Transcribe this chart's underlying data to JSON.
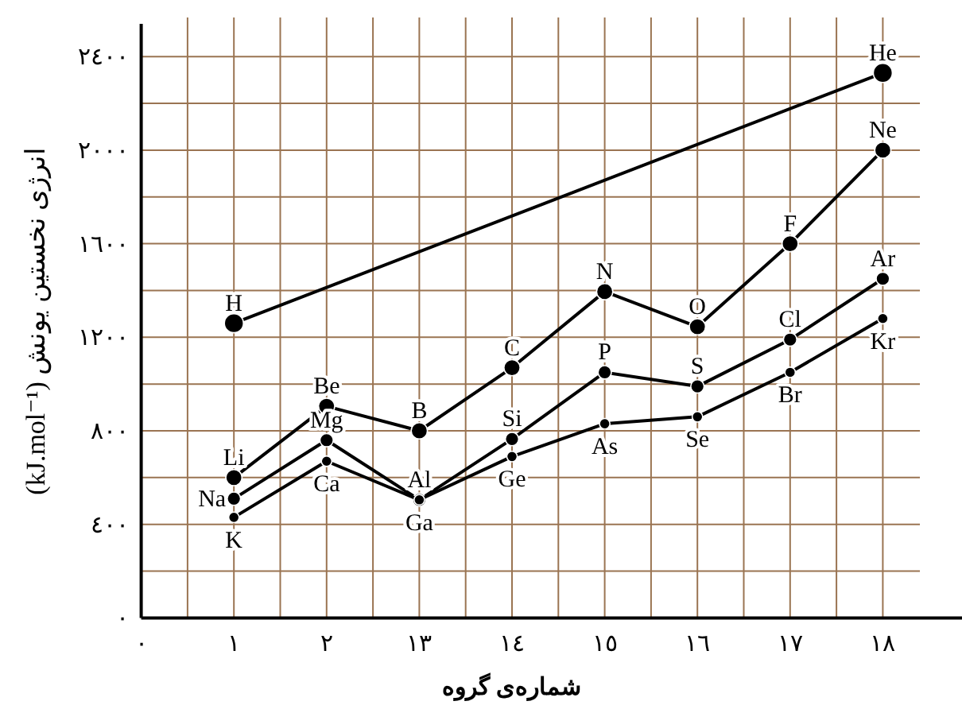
{
  "chart_data": {
    "type": "line",
    "xlabel": "شماره‌ی گروه",
    "ylabel": "انرژی نخستین یونش (kJ.mol⁻¹)",
    "categories": [
      "٠",
      "١",
      "٢",
      "١٣",
      "١٤",
      "١٥",
      "١٦",
      "١٧",
      "١٨"
    ],
    "series": [
      {
        "color": "#000000",
        "x": [
          "١",
          "١٨"
        ],
        "values": [
          1260,
          2330
        ]
      },
      {
        "color": "#000000",
        "values": [
          null,
          600,
          905,
          800,
          1070,
          1395,
          1245,
          1600,
          2000
        ]
      },
      {
        "color": "#000000",
        "values": [
          null,
          510,
          760,
          505,
          765,
          1050,
          990,
          1190,
          1450
        ]
      },
      {
        "color": "#000000",
        "values": [
          null,
          430,
          670,
          505,
          690,
          830,
          860,
          1050,
          1280
        ]
      }
    ],
    "ylim": [
      0,
      2540
    ],
    "yticks": [
      {
        "value": 0,
        "label": "٠"
      },
      {
        "value": 200,
        "label": null
      },
      {
        "value": 400,
        "label": "٤٠٠"
      },
      {
        "value": 600,
        "label": null
      },
      {
        "value": 800,
        "label": "٨٠٠"
      },
      {
        "value": 1000,
        "label": null
      },
      {
        "value": 1200,
        "label": "١٢٠٠"
      },
      {
        "value": 1400,
        "label": null
      },
      {
        "value": 1600,
        "label": "١٦٠٠"
      },
      {
        "value": 1800,
        "label": null
      },
      {
        "value": 2000,
        "label": "٢٠٠٠"
      },
      {
        "value": 2200,
        "label": null
      },
      {
        "value": 2400,
        "label": "٢٤٠٠"
      }
    ],
    "grid": true,
    "marker": "circle",
    "line_style": "solid",
    "annotations": [
      {
        "text": "H",
        "x": "١",
        "y": 1260
      },
      {
        "text": "He",
        "x": "١٨",
        "y": 2330
      },
      {
        "text": "Li",
        "x": "١",
        "y": 600
      },
      {
        "text": "Be",
        "x": "٢",
        "y": 905
      },
      {
        "text": "B",
        "x": "١٣",
        "y": 800
      },
      {
        "text": "C",
        "x": "١٤",
        "y": 1070
      },
      {
        "text": "N",
        "x": "١٥",
        "y": 1395
      },
      {
        "text": "O",
        "x": "١٦",
        "y": 1245
      },
      {
        "text": "F",
        "x": "١٧",
        "y": 1600
      },
      {
        "text": "Ne",
        "x": "١٨",
        "y": 2000
      },
      {
        "text": "Na",
        "x": "١",
        "y": 510
      },
      {
        "text": "Mg",
        "x": "٢",
        "y": 760
      },
      {
        "text": "Al",
        "x": "١٣",
        "y": 505
      },
      {
        "text": "Si",
        "x": "١٤",
        "y": 765
      },
      {
        "text": "P",
        "x": "١٥",
        "y": 1050
      },
      {
        "text": "S",
        "x": "١٦",
        "y": 990
      },
      {
        "text": "Cl",
        "x": "١٧",
        "y": 1190
      },
      {
        "text": "Ar",
        "x": "١٨",
        "y": 1450
      },
      {
        "text": "K",
        "x": "١",
        "y": 430
      },
      {
        "text": "Ca",
        "x": "٢",
        "y": 670
      },
      {
        "text": "Ga",
        "x": "١٣",
        "y": 505
      },
      {
        "text": "Ge",
        "x": "١٤",
        "y": 690
      },
      {
        "text": "As",
        "x": "١٥",
        "y": 830
      },
      {
        "text": "Se",
        "x": "١٦",
        "y": 860
      },
      {
        "text": "Br",
        "x": "١٧",
        "y": 1050
      },
      {
        "text": "Kr",
        "x": "١٨",
        "y": 1280
      }
    ]
  }
}
